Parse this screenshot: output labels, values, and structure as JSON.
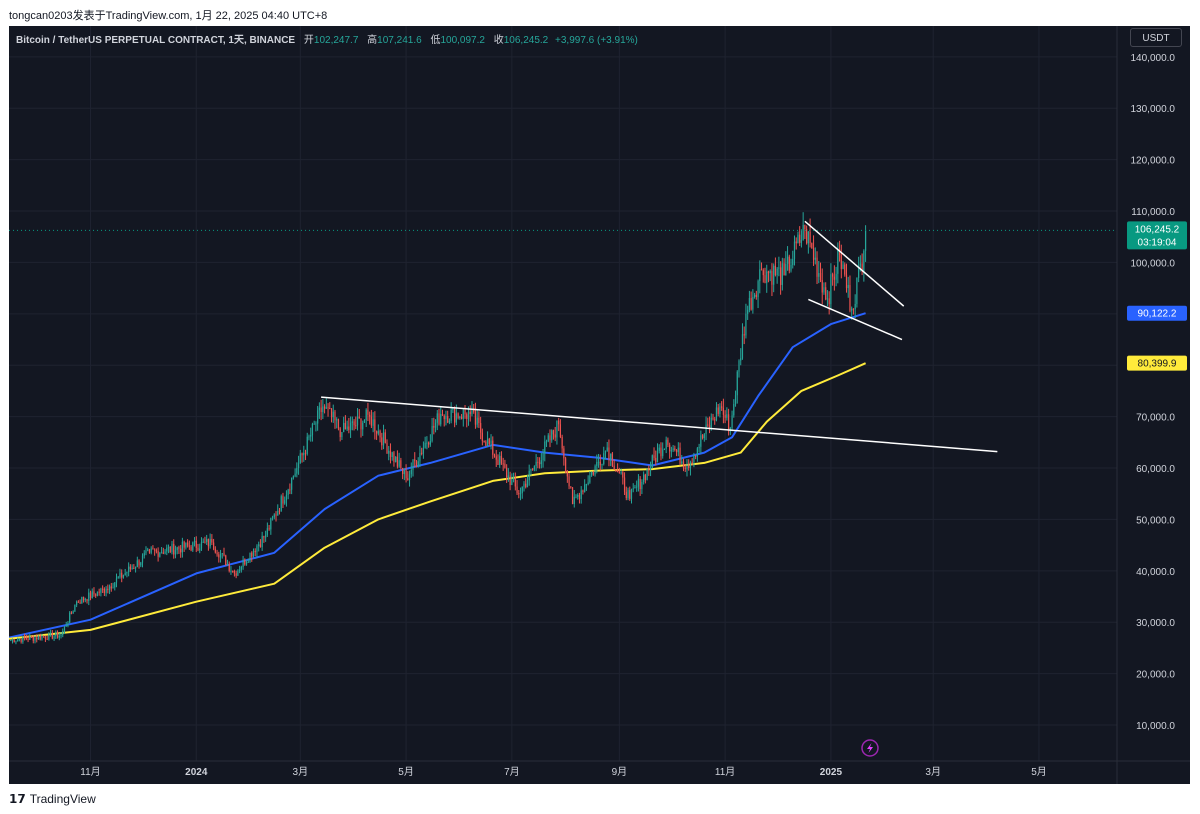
{
  "header": {
    "publish_info": "tongcan0203发表于TradingView.com, 1月 22, 2025 04:40 UTC+8"
  },
  "legend": {
    "symbol": "Bitcoin / TetherUS PERPETUAL CONTRACT, 1天, BINANCE",
    "open_label": "开",
    "open": "102,247.7",
    "high_label": "高",
    "high": "107,241.6",
    "low_label": "低",
    "low": "100,097.2",
    "close_label": "收",
    "close": "106,245.2",
    "change": "+3,997.6 (+3.91%)"
  },
  "currency_button": "USDT",
  "footer": {
    "logo_text": "TradingView"
  },
  "colors": {
    "background": "#131722",
    "grid": "#1f2330",
    "axis_text": "#d1d4dc",
    "up": "#26a69a",
    "down": "#ef5350",
    "ma_fast": "#2962ff",
    "ma_slow": "#ffeb3b",
    "trendline": "#ffffff"
  },
  "chart_data": {
    "type": "candlestick",
    "y_axis": {
      "ylim": [
        3000,
        146000
      ],
      "ticks": [
        10000,
        20000,
        30000,
        40000,
        50000,
        60000,
        70000,
        80000,
        90000,
        100000,
        110000,
        120000,
        130000,
        140000
      ],
      "tick_labels": [
        "10,000.0",
        "20,000.0",
        "30,000.0",
        "40,000.0",
        "50,000.0",
        "60,000.0",
        "70,000.0",
        "80,000.0",
        "90,000.0",
        "100,000.0",
        "110,000.0",
        "120,000.0",
        "130,000.0",
        "140,000.0"
      ]
    },
    "x_axis": {
      "xlim": [
        "2023-09-15",
        "2025-06-15"
      ],
      "ticks": [
        {
          "date": "2023-11-01",
          "label": "11月"
        },
        {
          "date": "2024-01-01",
          "label": "2024"
        },
        {
          "date": "2024-03-01",
          "label": "3月"
        },
        {
          "date": "2024-05-01",
          "label": "5月"
        },
        {
          "date": "2024-07-01",
          "label": "7月"
        },
        {
          "date": "2024-09-01",
          "label": "9月"
        },
        {
          "date": "2024-11-01",
          "label": "11月"
        },
        {
          "date": "2025-01-01",
          "label": "2025"
        },
        {
          "date": "2025-03-01",
          "label": "3月"
        },
        {
          "date": "2025-05-01",
          "label": "5月"
        }
      ]
    },
    "price_anchors": [
      {
        "date": "2023-09-15",
        "close": 26500
      },
      {
        "date": "2023-10-15",
        "close": 27500
      },
      {
        "date": "2023-10-24",
        "close": 34000
      },
      {
        "date": "2023-11-10",
        "close": 36500
      },
      {
        "date": "2023-12-05",
        "close": 43500
      },
      {
        "date": "2024-01-10",
        "close": 45500
      },
      {
        "date": "2024-01-23",
        "close": 39500
      },
      {
        "date": "2024-02-10",
        "close": 47000
      },
      {
        "date": "2024-02-28",
        "close": 60000
      },
      {
        "date": "2024-03-14",
        "close": 72000
      },
      {
        "date": "2024-03-25",
        "close": 67000
      },
      {
        "date": "2024-04-10",
        "close": 70000
      },
      {
        "date": "2024-05-01",
        "close": 58000
      },
      {
        "date": "2024-05-21",
        "close": 70500
      },
      {
        "date": "2024-06-07",
        "close": 70500
      },
      {
        "date": "2024-07-05",
        "close": 55000
      },
      {
        "date": "2024-07-28",
        "close": 68500
      },
      {
        "date": "2024-08-05",
        "close": 53000
      },
      {
        "date": "2024-08-25",
        "close": 64000
      },
      {
        "date": "2024-09-07",
        "close": 54000
      },
      {
        "date": "2024-09-28",
        "close": 65500
      },
      {
        "date": "2024-10-10",
        "close": 60500
      },
      {
        "date": "2024-10-29",
        "close": 72000
      },
      {
        "date": "2024-11-04",
        "close": 67800
      },
      {
        "date": "2024-11-13",
        "close": 90000
      },
      {
        "date": "2024-11-22",
        "close": 98500
      },
      {
        "date": "2024-12-05",
        "close": 97500
      },
      {
        "date": "2024-12-17",
        "close": 106500
      },
      {
        "date": "2024-12-30",
        "close": 93000
      },
      {
        "date": "2025-01-06",
        "close": 101500
      },
      {
        "date": "2025-01-13",
        "close": 91000
      },
      {
        "date": "2025-01-20",
        "close": 102247.7
      },
      {
        "date": "2025-01-21",
        "close": 106245.2
      }
    ],
    "last_candle": {
      "date": "2025-01-21",
      "open": 102247.7,
      "high": 107241.6,
      "low": 100097.2,
      "close": 106245.2
    },
    "moving_averages": [
      {
        "color": "#2962ff",
        "points": [
          {
            "date": "2023-09-15",
            "value": 27000
          },
          {
            "date": "2023-11-01",
            "value": 30500
          },
          {
            "date": "2024-01-01",
            "value": 39500
          },
          {
            "date": "2024-02-15",
            "value": 43500
          },
          {
            "date": "2024-03-15",
            "value": 52000
          },
          {
            "date": "2024-04-15",
            "value": 58500
          },
          {
            "date": "2024-05-15",
            "value": 61000
          },
          {
            "date": "2024-06-20",
            "value": 64500
          },
          {
            "date": "2024-07-20",
            "value": 63000
          },
          {
            "date": "2024-08-20",
            "value": 62000
          },
          {
            "date": "2024-09-20",
            "value": 60500
          },
          {
            "date": "2024-10-20",
            "value": 63000
          },
          {
            "date": "2024-11-05",
            "value": 66000
          },
          {
            "date": "2024-11-20",
            "value": 74000
          },
          {
            "date": "2024-12-10",
            "value": 83500
          },
          {
            "date": "2025-01-01",
            "value": 88000
          },
          {
            "date": "2025-01-21",
            "value": 90122.2
          }
        ]
      },
      {
        "color": "#ffeb3b",
        "points": [
          {
            "date": "2023-09-15",
            "value": 26800
          },
          {
            "date": "2023-11-01",
            "value": 28500
          },
          {
            "date": "2024-01-01",
            "value": 34000
          },
          {
            "date": "2024-02-15",
            "value": 37500
          },
          {
            "date": "2024-03-15",
            "value": 44500
          },
          {
            "date": "2024-04-15",
            "value": 50000
          },
          {
            "date": "2024-05-15",
            "value": 53500
          },
          {
            "date": "2024-06-20",
            "value": 57500
          },
          {
            "date": "2024-07-20",
            "value": 59000
          },
          {
            "date": "2024-08-20",
            "value": 59500
          },
          {
            "date": "2024-09-20",
            "value": 59800
          },
          {
            "date": "2024-10-20",
            "value": 61000
          },
          {
            "date": "2024-11-10",
            "value": 63000
          },
          {
            "date": "2024-11-25",
            "value": 69000
          },
          {
            "date": "2024-12-15",
            "value": 75000
          },
          {
            "date": "2025-01-05",
            "value": 78000
          },
          {
            "date": "2025-01-21",
            "value": 80399.9
          }
        ]
      }
    ],
    "trendlines": [
      {
        "from": {
          "date": "2024-03-13",
          "value": 73800
        },
        "to": {
          "date": "2025-04-07",
          "value": 63200
        }
      },
      {
        "from": {
          "date": "2024-12-17",
          "value": 108000
        },
        "to": {
          "date": "2025-02-12",
          "value": 91500
        }
      },
      {
        "from": {
          "date": "2024-12-19",
          "value": 92800
        },
        "to": {
          "date": "2025-02-11",
          "value": 85000
        }
      }
    ],
    "price_labels": [
      {
        "text": "106,245.2",
        "sub": "03:19:04",
        "value": 106245.2,
        "bg": "#089981",
        "fg": "#ffffff"
      },
      {
        "text": "90,122.2",
        "value": 90122.2,
        "bg": "#2962ff",
        "fg": "#ffffff"
      },
      {
        "text": "80,399.9",
        "value": 80399.9,
        "bg": "#ffeb3b",
        "fg": "#131722"
      }
    ],
    "grid": true,
    "legend_position": "top-left"
  }
}
